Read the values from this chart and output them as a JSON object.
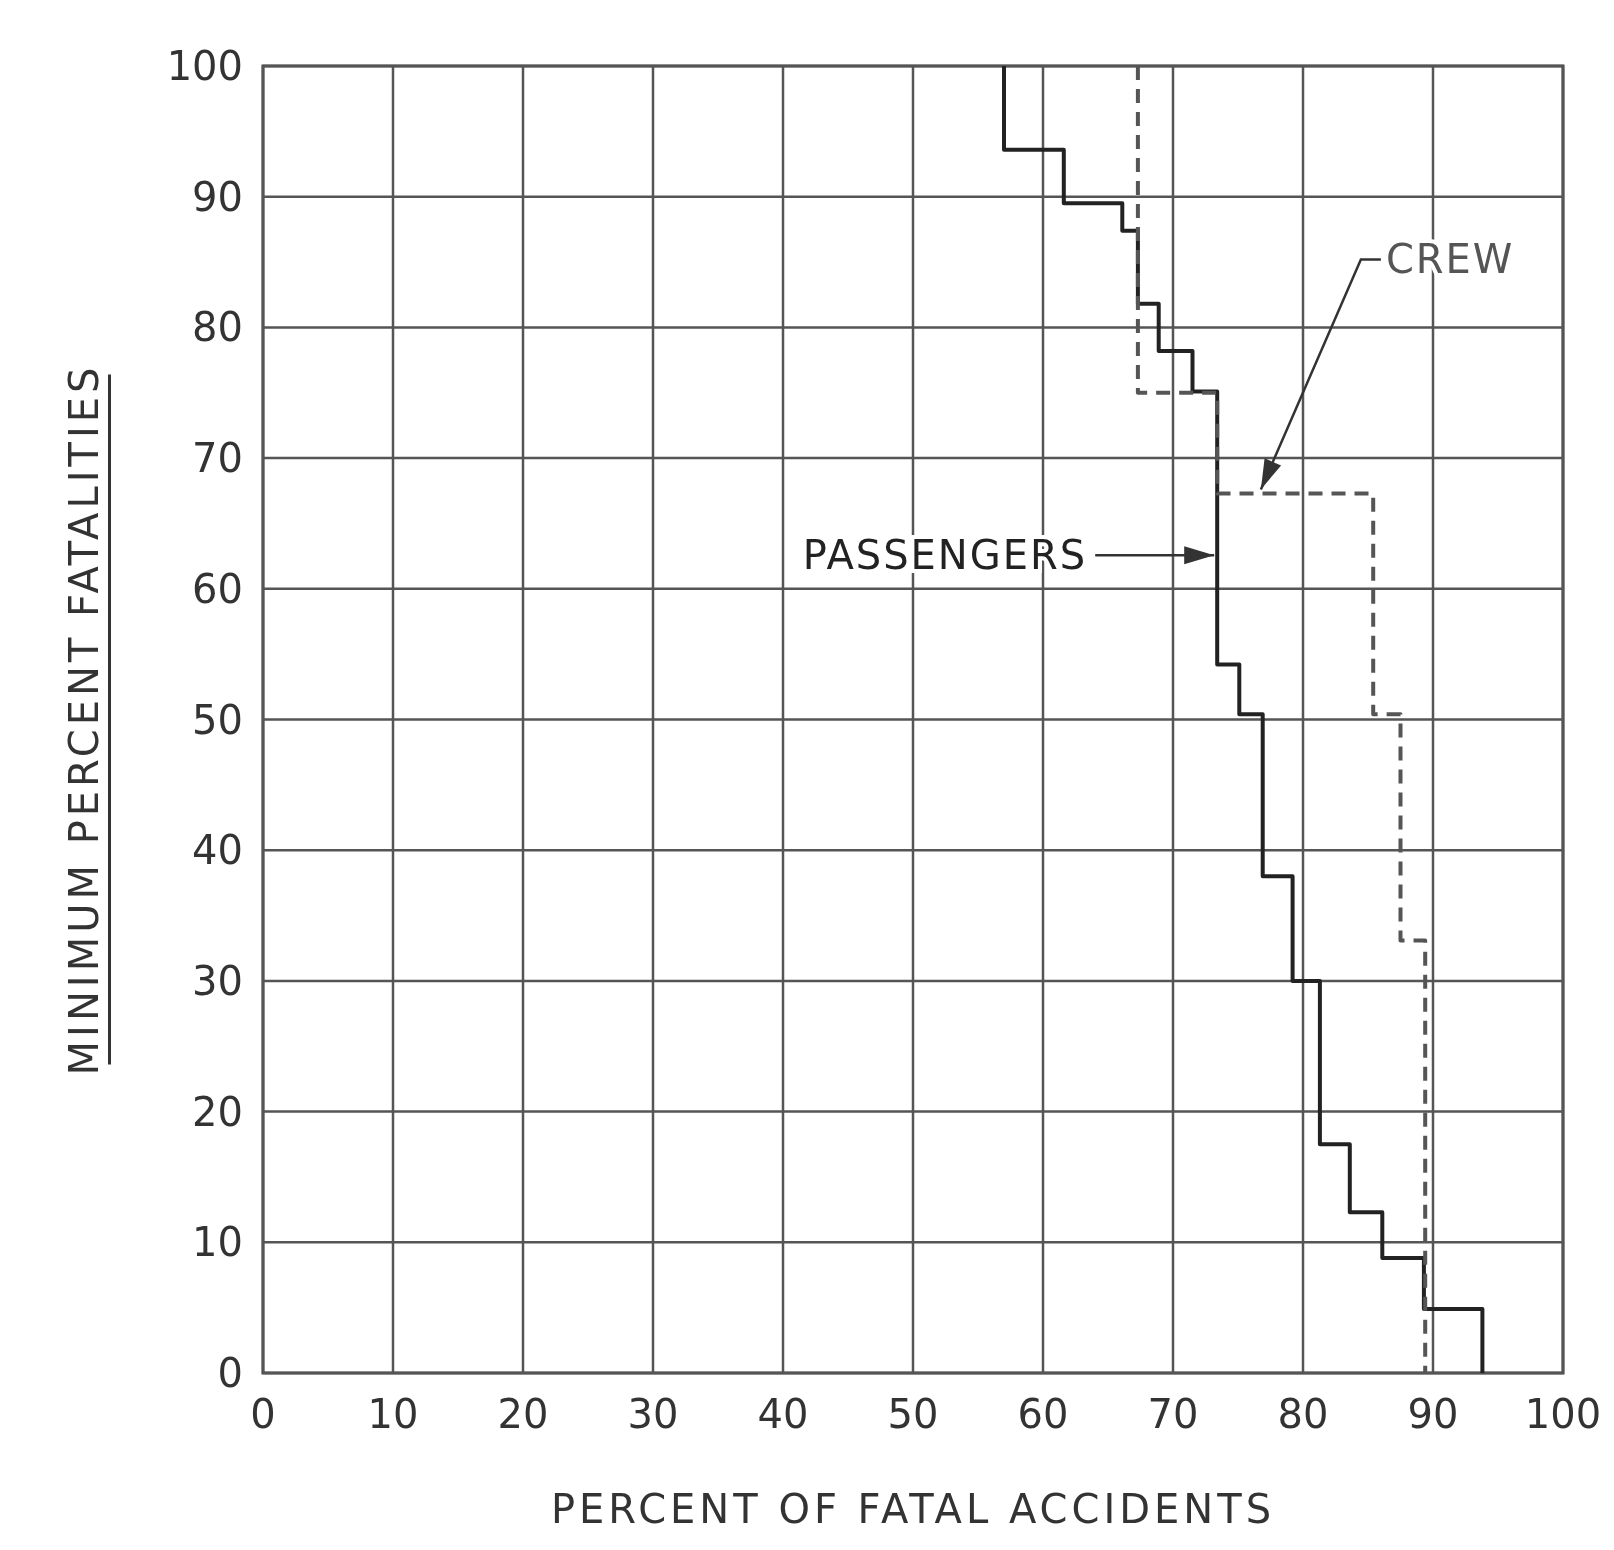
{
  "chart_data": {
    "type": "step",
    "xlabel": "PERCENT OF FATAL ACCIDENTS",
    "ylabel": "MINIMUM PERCENT FATALITIES",
    "xlim": [
      0,
      100
    ],
    "ylim": [
      0,
      100
    ],
    "xticks": [
      0,
      10,
      20,
      30,
      40,
      50,
      60,
      70,
      80,
      90,
      100
    ],
    "yticks": [
      0,
      10,
      20,
      30,
      40,
      50,
      60,
      70,
      80,
      90,
      100
    ],
    "grid": true,
    "legend": false,
    "series": [
      {
        "name": "PASSENGERS",
        "color": "#222222",
        "line_style": "solid",
        "x": [
          57,
          61.6,
          66.1,
          67.3,
          68.9,
          71.5,
          73.4,
          75.1,
          76.9,
          79.2,
          81.3,
          83.6,
          86.1,
          89.3,
          93.8,
          93.8
        ],
        "values": [
          100,
          93.6,
          89.5,
          87.4,
          81.8,
          78.2,
          75.1,
          54.2,
          50.4,
          38,
          30,
          17.5,
          12.3,
          8.8,
          4.9,
          0
        ]
      },
      {
        "name": "CREW",
        "color": "#555555",
        "line_style": "dashed",
        "x": [
          67.3,
          73.4,
          85.4,
          87.5,
          89.4,
          89.4
        ],
        "values": [
          100,
          75,
          67.3,
          50.4,
          33.1,
          0
        ]
      }
    ]
  }
}
